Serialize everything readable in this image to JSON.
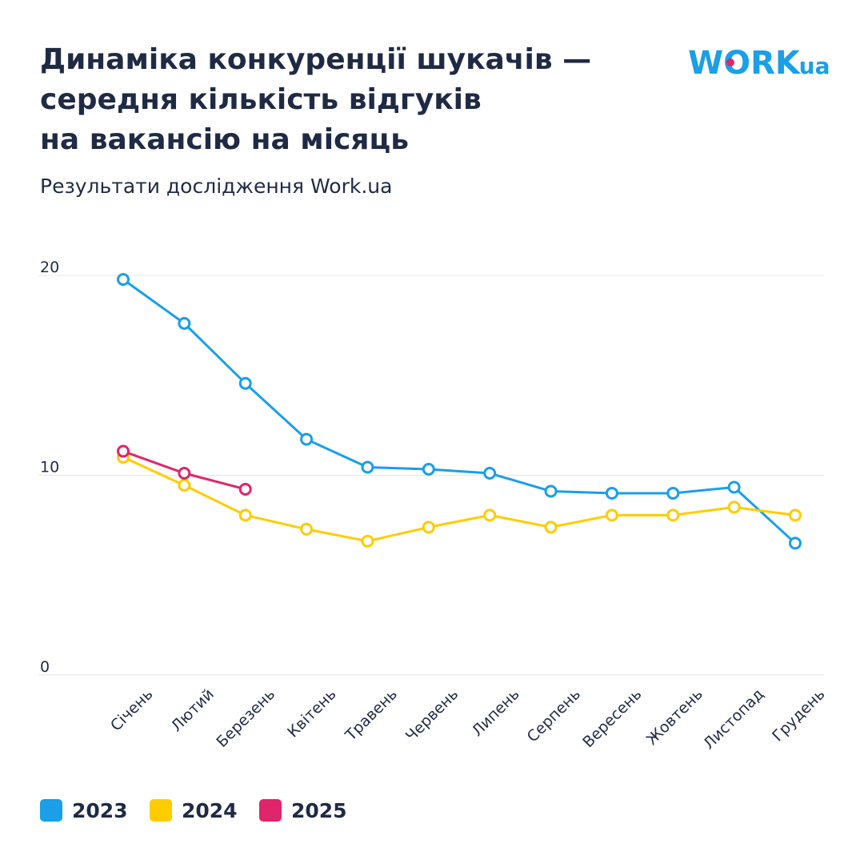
{
  "chart_data": {
    "type": "line",
    "title": [
      "Динаміка конкуренції шукачів —",
      "середня кількість відгуків",
      "на вакансію на місяць"
    ],
    "subtitle": "Результати дослідження Work.ua",
    "logo": {
      "main": "WORK",
      "suffix": ".ua"
    },
    "categories": [
      "Січень",
      "Лютий",
      "Березень",
      "Квітень",
      "Травень",
      "Червень",
      "Липень",
      "Серпень",
      "Вересень",
      "Жовтень",
      "Листопад",
      "Грудень"
    ],
    "series": [
      {
        "name": "2023",
        "color": "#1a9fe8",
        "values": [
          19.8,
          17.6,
          14.6,
          11.8,
          10.4,
          10.3,
          10.1,
          9.2,
          9.1,
          9.1,
          9.4,
          6.6
        ]
      },
      {
        "name": "2024",
        "color": "#ffcc00",
        "values": [
          10.9,
          9.5,
          8.0,
          7.3,
          6.7,
          7.4,
          8.0,
          7.4,
          8.0,
          8.0,
          8.4,
          8.0
        ]
      },
      {
        "name": "2025",
        "color": "#e0256b",
        "values": [
          11.2,
          10.1,
          9.3,
          null,
          null,
          null,
          null,
          null,
          null,
          null,
          null,
          null
        ]
      }
    ],
    "ylim": [
      0,
      20
    ],
    "yticks": [
      0,
      10,
      20
    ],
    "grid": true
  }
}
